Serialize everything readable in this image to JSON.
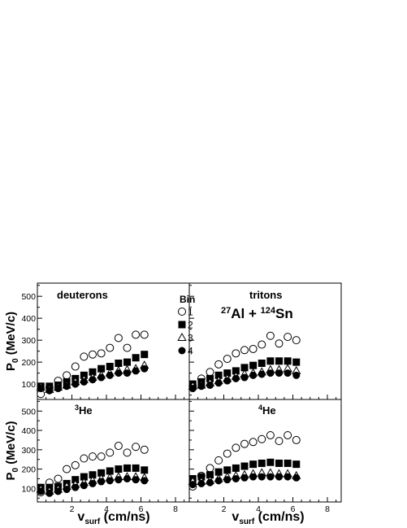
{
  "figure": {
    "reaction_pre1": "27",
    "reaction_mid1": "Al + ",
    "reaction_pre2": "124",
    "reaction_mid2": "Sn",
    "legend_title": "Bin",
    "y_axis_label_main": "P",
    "y_axis_label_sub": "0",
    "y_axis_label_unit": " (MeV/c)",
    "x_axis_label_main": "v",
    "x_axis_label_sub": "surf",
    "x_axis_label_unit": " (cm/ns)",
    "x_ticks": [
      "2",
      "4",
      "6",
      "8"
    ],
    "y_ticks": [
      "100",
      "200",
      "300",
      "400",
      "500"
    ]
  },
  "chart_data": [
    {
      "type": "scatter",
      "panel": "top-left",
      "label": "deuterons",
      "label_pre": "",
      "label_main": "deuterons",
      "xlim": [
        0,
        8.8
      ],
      "ylim": [
        30,
        560
      ],
      "grid": false,
      "series": [
        {
          "name": "1",
          "marker": "open-circle",
          "points": [
            [
              0.2,
              55
            ],
            [
              0.7,
              85
            ],
            [
              1.2,
              115
            ],
            [
              1.7,
              140
            ],
            [
              2.2,
              180
            ],
            [
              2.7,
              225
            ],
            [
              3.2,
              235
            ],
            [
              3.7,
              240
            ],
            [
              4.2,
              265
            ],
            [
              4.7,
              310
            ],
            [
              5.2,
              265
            ],
            [
              5.7,
              325
            ],
            [
              6.2,
              325
            ]
          ]
        },
        {
          "name": "2",
          "marker": "filled-square",
          "points": [
            [
              0.2,
              90
            ],
            [
              0.7,
              90
            ],
            [
              1.2,
              95
            ],
            [
              1.7,
              110
            ],
            [
              2.2,
              125
            ],
            [
              2.7,
              140
            ],
            [
              3.2,
              155
            ],
            [
              3.7,
              170
            ],
            [
              4.2,
              180
            ],
            [
              4.7,
              195
            ],
            [
              5.2,
              200
            ],
            [
              5.7,
              220
            ],
            [
              6.2,
              235
            ]
          ]
        },
        {
          "name": "3",
          "marker": "open-triangle",
          "points": [
            [
              0.2,
              85
            ],
            [
              0.7,
              75
            ],
            [
              1.2,
              85
            ],
            [
              1.7,
              95
            ],
            [
              2.2,
              110
            ],
            [
              2.7,
              120
            ],
            [
              3.2,
              130
            ],
            [
              3.7,
              140
            ],
            [
              4.2,
              150
            ],
            [
              4.7,
              160
            ],
            [
              5.2,
              165
            ],
            [
              5.7,
              170
            ],
            [
              6.2,
              185
            ]
          ]
        },
        {
          "name": "4",
          "marker": "filled-circle",
          "points": [
            [
              0.2,
              80
            ],
            [
              0.7,
              70
            ],
            [
              1.2,
              80
            ],
            [
              1.7,
              90
            ],
            [
              2.2,
              100
            ],
            [
              2.7,
              110
            ],
            [
              3.2,
              120
            ],
            [
              3.7,
              130
            ],
            [
              4.2,
              140
            ],
            [
              4.7,
              150
            ],
            [
              5.2,
              150
            ],
            [
              5.7,
              160
            ],
            [
              6.2,
              170
            ]
          ]
        }
      ]
    },
    {
      "type": "scatter",
      "panel": "top-right",
      "label": "tritons",
      "label_pre": "",
      "label_main": "tritons",
      "xlim": [
        0,
        8.8
      ],
      "ylim": [
        30,
        560
      ],
      "grid": false,
      "series": [
        {
          "name": "1",
          "marker": "open-circle",
          "points": [
            [
              0.2,
              90
            ],
            [
              0.7,
              125
            ],
            [
              1.2,
              155
            ],
            [
              1.7,
              190
            ],
            [
              2.2,
              215
            ],
            [
              2.7,
              240
            ],
            [
              3.2,
              255
            ],
            [
              3.7,
              260
            ],
            [
              4.2,
              280
            ],
            [
              4.7,
              320
            ],
            [
              5.2,
              285
            ],
            [
              5.7,
              315
            ],
            [
              6.2,
              300
            ]
          ]
        },
        {
          "name": "2",
          "marker": "filled-square",
          "points": [
            [
              0.2,
              100
            ],
            [
              0.7,
              110
            ],
            [
              1.2,
              125
            ],
            [
              1.7,
              140
            ],
            [
              2.2,
              150
            ],
            [
              2.7,
              160
            ],
            [
              3.2,
              175
            ],
            [
              3.7,
              185
            ],
            [
              4.2,
              195
            ],
            [
              4.7,
              205
            ],
            [
              5.2,
              205
            ],
            [
              5.7,
              205
            ],
            [
              6.2,
              200
            ]
          ]
        },
        {
          "name": "3",
          "marker": "open-triangle",
          "points": [
            [
              0.2,
              90
            ],
            [
              0.7,
              95
            ],
            [
              1.2,
              105
            ],
            [
              1.7,
              115
            ],
            [
              2.2,
              125
            ],
            [
              2.7,
              135
            ],
            [
              3.2,
              145
            ],
            [
              3.7,
              150
            ],
            [
              4.2,
              155
            ],
            [
              4.7,
              165
            ],
            [
              5.2,
              165
            ],
            [
              5.7,
              170
            ],
            [
              6.2,
              160
            ]
          ]
        },
        {
          "name": "4",
          "marker": "filled-circle",
          "points": [
            [
              0.2,
              80
            ],
            [
              0.7,
              90
            ],
            [
              1.2,
              95
            ],
            [
              1.7,
              105
            ],
            [
              2.2,
              115
            ],
            [
              2.7,
              125
            ],
            [
              3.2,
              130
            ],
            [
              3.7,
              140
            ],
            [
              4.2,
              145
            ],
            [
              4.7,
              150
            ],
            [
              5.2,
              150
            ],
            [
              5.7,
              150
            ],
            [
              6.2,
              140
            ]
          ]
        }
      ]
    },
    {
      "type": "scatter",
      "panel": "bottom-left",
      "label": "3He",
      "label_pre": "3",
      "label_main": "He",
      "xlim": [
        0,
        8.8
      ],
      "ylim": [
        30,
        560
      ],
      "grid": false,
      "series": [
        {
          "name": "1",
          "marker": "open-circle",
          "points": [
            [
              0.2,
              80
            ],
            [
              0.7,
              130
            ],
            [
              1.2,
              150
            ],
            [
              1.7,
              200
            ],
            [
              2.2,
              220
            ],
            [
              2.7,
              255
            ],
            [
              3.2,
              265
            ],
            [
              3.7,
              265
            ],
            [
              4.2,
              285
            ],
            [
              4.7,
              320
            ],
            [
              5.2,
              285
            ],
            [
              5.7,
              315
            ],
            [
              6.2,
              300
            ]
          ]
        },
        {
          "name": "2",
          "marker": "filled-square",
          "points": [
            [
              0.2,
              105
            ],
            [
              0.7,
              105
            ],
            [
              1.2,
              110
            ],
            [
              1.7,
              125
            ],
            [
              2.2,
              145
            ],
            [
              2.7,
              160
            ],
            [
              3.2,
              170
            ],
            [
              3.7,
              180
            ],
            [
              4.2,
              190
            ],
            [
              4.7,
              200
            ],
            [
              5.2,
              205
            ],
            [
              5.7,
              205
            ],
            [
              6.2,
              195
            ]
          ]
        },
        {
          "name": "3",
          "marker": "open-triangle",
          "points": [
            [
              0.2,
              95
            ],
            [
              0.7,
              85
            ],
            [
              1.2,
              95
            ],
            [
              1.7,
              110
            ],
            [
              2.2,
              120
            ],
            [
              2.7,
              130
            ],
            [
              3.2,
              140
            ],
            [
              3.7,
              150
            ],
            [
              4.2,
              155
            ],
            [
              4.7,
              160
            ],
            [
              5.2,
              160
            ],
            [
              5.7,
              160
            ],
            [
              6.2,
              155
            ]
          ]
        },
        {
          "name": "4",
          "marker": "filled-circle",
          "points": [
            [
              0.2,
              85
            ],
            [
              0.7,
              75
            ],
            [
              1.2,
              85
            ],
            [
              1.7,
              95
            ],
            [
              2.2,
              105
            ],
            [
              2.7,
              115
            ],
            [
              3.2,
              125
            ],
            [
              3.7,
              135
            ],
            [
              4.2,
              140
            ],
            [
              4.7,
              145
            ],
            [
              5.2,
              150
            ],
            [
              5.7,
              145
            ],
            [
              6.2,
              140
            ]
          ]
        }
      ]
    },
    {
      "type": "scatter",
      "panel": "bottom-right",
      "label": "4He",
      "label_pre": "4",
      "label_main": "He",
      "xlim": [
        0,
        8.8
      ],
      "ylim": [
        30,
        560
      ],
      "grid": false,
      "series": [
        {
          "name": "1",
          "marker": "open-circle",
          "points": [
            [
              0.2,
              110
            ],
            [
              0.7,
              165
            ],
            [
              1.2,
              205
            ],
            [
              1.7,
              245
            ],
            [
              2.2,
              280
            ],
            [
              2.7,
              310
            ],
            [
              3.2,
              330
            ],
            [
              3.7,
              340
            ],
            [
              4.2,
              355
            ],
            [
              4.7,
              375
            ],
            [
              5.2,
              345
            ],
            [
              5.7,
              375
            ],
            [
              6.2,
              350
            ]
          ]
        },
        {
          "name": "2",
          "marker": "filled-square",
          "points": [
            [
              0.2,
              150
            ],
            [
              0.7,
              160
            ],
            [
              1.2,
              170
            ],
            [
              1.7,
              185
            ],
            [
              2.2,
              195
            ],
            [
              2.7,
              205
            ],
            [
              3.2,
              215
            ],
            [
              3.7,
              225
            ],
            [
              4.2,
              230
            ],
            [
              4.7,
              235
            ],
            [
              5.2,
              230
            ],
            [
              5.7,
              230
            ],
            [
              6.2,
              225
            ]
          ]
        },
        {
          "name": "3",
          "marker": "open-triangle",
          "points": [
            [
              0.2,
              135
            ],
            [
              0.7,
              135
            ],
            [
              1.2,
              140
            ],
            [
              1.7,
              150
            ],
            [
              2.2,
              160
            ],
            [
              2.7,
              165
            ],
            [
              3.2,
              170
            ],
            [
              3.7,
              175
            ],
            [
              4.2,
              180
            ],
            [
              4.7,
              180
            ],
            [
              5.2,
              175
            ],
            [
              5.7,
              175
            ],
            [
              6.2,
              165
            ]
          ]
        },
        {
          "name": "4",
          "marker": "filled-circle",
          "points": [
            [
              0.2,
              120
            ],
            [
              0.7,
              125
            ],
            [
              1.2,
              130
            ],
            [
              1.7,
              140
            ],
            [
              2.2,
              145
            ],
            [
              2.7,
              150
            ],
            [
              3.2,
              155
            ],
            [
              3.7,
              160
            ],
            [
              4.2,
              160
            ],
            [
              4.7,
              160
            ],
            [
              5.2,
              160
            ],
            [
              5.7,
              160
            ],
            [
              6.2,
              155
            ]
          ]
        }
      ]
    }
  ]
}
